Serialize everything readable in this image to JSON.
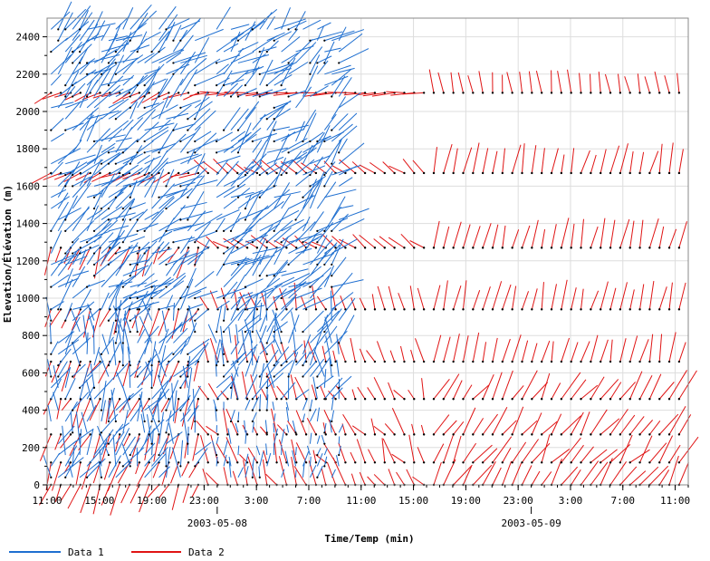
{
  "chart_data": {
    "type": "line",
    "subtype": "wind barbs / profiler vector plot",
    "xlabel": "Time/Temp (min)",
    "ylabel": "Elevation/Élévation (m)",
    "x_ticks": [
      "11:00",
      "15:00",
      "19:00",
      "23:00",
      "3:00",
      "7:00",
      "11:00",
      "15:00",
      "19:00",
      "23:00",
      "3:00",
      "7:00",
      "11:00"
    ],
    "x_tick_times_h": [
      11,
      15,
      19,
      23,
      27,
      31,
      35,
      39,
      43,
      47,
      51,
      55,
      59
    ],
    "x_date_labels": [
      {
        "text": "2003-05-08",
        "time_h": 24
      },
      {
        "text": "2003-05-09",
        "time_h": 48
      }
    ],
    "x_range_h": [
      11,
      60
    ],
    "y_ticks": [
      0,
      200,
      400,
      600,
      800,
      1000,
      1200,
      1400,
      1600,
      1800,
      2000,
      2200,
      2400
    ],
    "y_range": [
      0,
      2500
    ],
    "grid": true,
    "legend_position": "bottom-left",
    "series": [
      {
        "name": "Data 1",
        "color": "#1f6fd0",
        "time_range_h": [
          11,
          33.5
        ],
        "gap_h": [
          22.4,
          23.8
        ],
        "elevation_range": [
          0,
          2450
        ],
        "elevation_step": 60
      },
      {
        "name": "Data 2",
        "color": "#e01414",
        "time_range_h": [
          11,
          60
        ],
        "elevation_range": [
          0,
          2200
        ],
        "barb_levels": [
          2100,
          1670,
          1270,
          940,
          660,
          460,
          270,
          120,
          0
        ]
      }
    ]
  }
}
